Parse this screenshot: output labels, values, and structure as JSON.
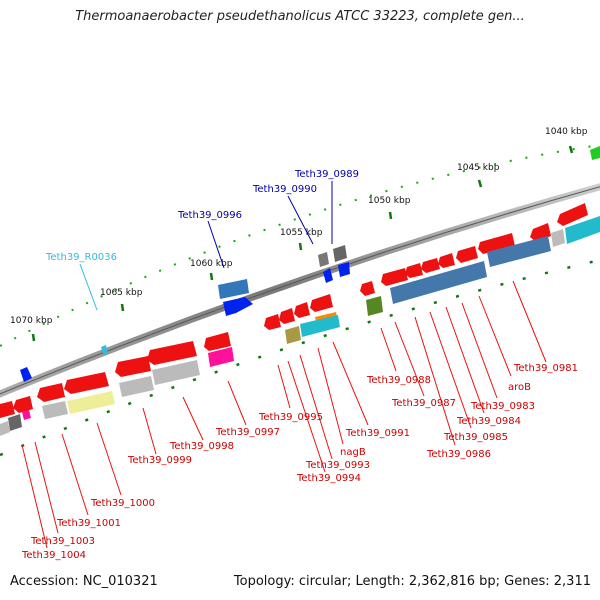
{
  "title": "Thermoanaerobacter pseudethanolicus ATCC 33223, complete gen...",
  "footer": {
    "accession": "Accession: NC_010321",
    "topology": "Topology: circular; Length: 2,362,816 bp; Genes: 2,311"
  },
  "scale_labels": [
    "1040 kbp",
    "1045 kbp",
    "1050 kbp",
    "1055 kbp",
    "1060 kbp",
    "1065 kbp",
    "1070 kbp"
  ],
  "colors": {
    "red_gene": "#ee1111",
    "blue_label": "#0000aa",
    "rna_label": "#33bbdd",
    "backbone": "#888888",
    "tick_green": "#117711"
  },
  "gene_labels": {
    "top": [
      "Teth39_0989",
      "Teth39_0990",
      "Teth39_0996",
      "Teth39_R0036"
    ],
    "bottom": [
      "Teth39_0981",
      "aroB",
      "Teth39_0983",
      "Teth39_0984",
      "Teth39_0985",
      "Teth39_0986",
      "Teth39_0987",
      "Teth39_0988",
      "Teth39_0991",
      "nagB",
      "Teth39_0993",
      "Teth39_0994",
      "Teth39_0995",
      "Teth39_0997",
      "Teth39_0998",
      "Teth39_0999",
      "Teth39_1000",
      "Teth39_1001",
      "Teth39_1003",
      "Teth39_1004"
    ]
  }
}
